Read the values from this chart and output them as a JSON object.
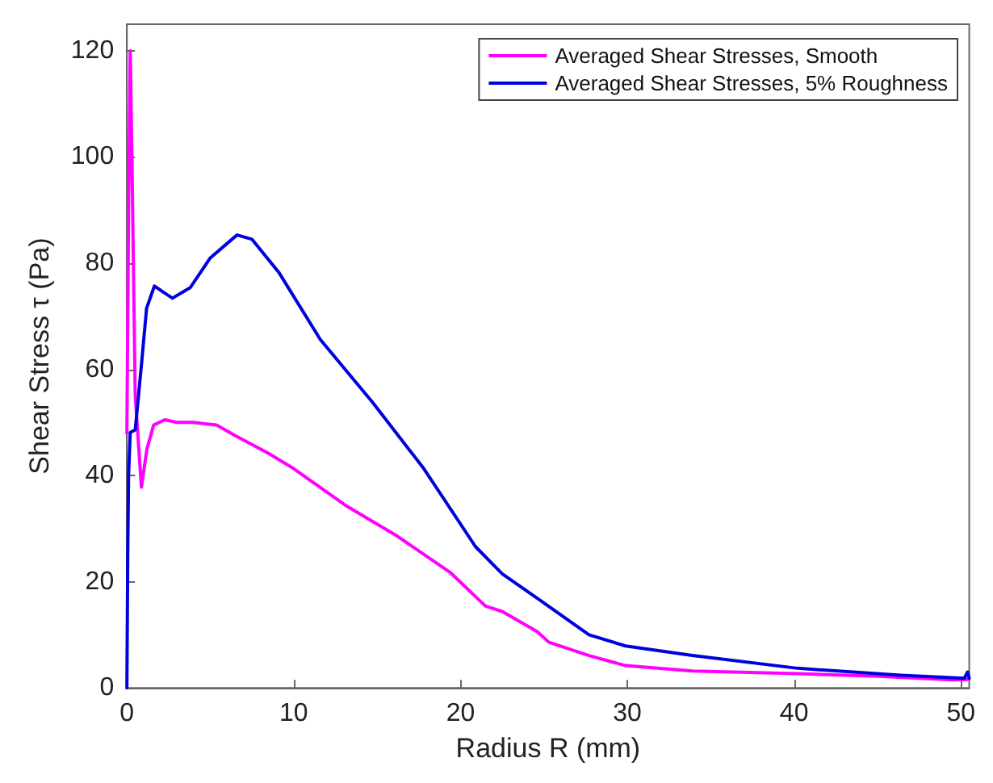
{
  "chart_data": {
    "type": "line",
    "xlabel": "Radius R (mm)",
    "ylabel": "Shear Stress τ (Pa)",
    "xlim": [
      0,
      50.5
    ],
    "ylim": [
      0,
      125
    ],
    "xticks": [
      0,
      10,
      20,
      30,
      40,
      50
    ],
    "yticks": [
      0,
      20,
      40,
      60,
      80,
      100,
      120
    ],
    "grid": false,
    "legend": "top right",
    "marker": "none",
    "line_style": "solid",
    "series": [
      {
        "name": "Averaged Shear Stresses, Smooth",
        "color": "#ff00ff",
        "x": [
          0,
          0.1,
          0.2,
          0.3,
          0.5,
          0.87,
          1.2,
          1.6,
          2.27,
          3,
          4,
          5.37,
          6.5,
          8.48,
          10,
          13.1,
          16.2,
          19.4,
          21.5,
          22.5,
          24.6,
          25.3,
          27.7,
          29.9,
          33.9,
          40.2,
          45,
          49.5,
          50.4
        ],
        "values": [
          48,
          90,
          120,
          100,
          55,
          37.8,
          45,
          49.5,
          50.5,
          50,
          50,
          49.5,
          47.5,
          44.2,
          41.3,
          34.4,
          28.6,
          21.7,
          15.4,
          14.4,
          10.6,
          8.6,
          6.1,
          4.2,
          3.2,
          2.7,
          2.2,
          1.5,
          1.6
        ]
      },
      {
        "name": "Averaged Shear Stresses, 5% Roughness",
        "color": "#0000dd",
        "x": [
          0,
          0.05,
          0.1,
          0.2,
          0.5,
          0.87,
          1.18,
          1.65,
          2.2,
          2.73,
          3.8,
          5,
          6.6,
          7.5,
          9.1,
          11.6,
          14.7,
          17.8,
          20.9,
          22.5,
          24.6,
          27.7,
          29.9,
          33.9,
          40.2,
          46.4,
          50.2,
          50.4,
          50.5
        ],
        "values": [
          0,
          25,
          40,
          48.1,
          48.6,
          60.8,
          71.5,
          75.7,
          74.5,
          73.4,
          75.4,
          81,
          85.3,
          84.5,
          78.3,
          65.6,
          53.9,
          41.3,
          26.6,
          21.5,
          16.9,
          10,
          7.9,
          6.1,
          3.7,
          2.4,
          1.8,
          3,
          1.8
        ]
      }
    ]
  }
}
